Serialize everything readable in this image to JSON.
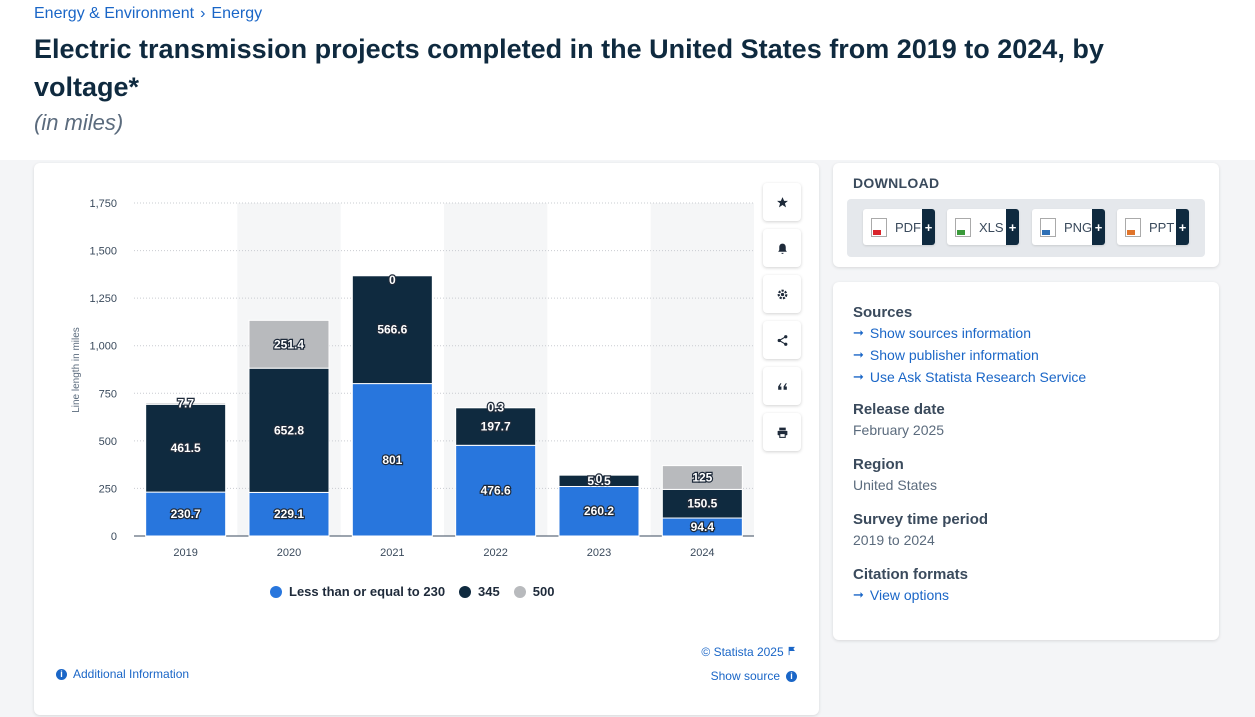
{
  "breadcrumb": [
    "Energy & Environment",
    "Energy"
  ],
  "title": "Electric transmission projects completed in the United States from 2019 to 2024, by voltage*",
  "subtitle": "(in miles)",
  "chart_data": {
    "type": "bar",
    "stacked": true,
    "categories": [
      "2019",
      "2020",
      "2021",
      "2022",
      "2023",
      "2024"
    ],
    "series": [
      {
        "name": "Less than or equal to 230",
        "color": "#2876dd",
        "values": [
          230.7,
          229.1,
          801,
          476.6,
          260.2,
          94.4
        ]
      },
      {
        "name": "345",
        "color": "#0f2a3f",
        "values": [
          461.5,
          652.8,
          566.6,
          197.7,
          59.5,
          150.5
        ]
      },
      {
        "name": "500",
        "color": "#b8babd",
        "values": [
          7.7,
          251.4,
          0,
          0.3,
          0,
          125
        ]
      }
    ],
    "ylabel": "Line length in miles",
    "ylim": [
      0,
      1750
    ],
    "yticks": [
      "0",
      "250",
      "500",
      "750",
      "1,000",
      "1,250",
      "1,500",
      "1,750"
    ],
    "grid": true,
    "legend_position": "bottom"
  },
  "toolbar": [
    "star-icon",
    "bell-icon",
    "gear-icon",
    "share-icon",
    "quote-icon",
    "print-icon"
  ],
  "copyright": "© Statista 2025",
  "additional_info": "Additional Information",
  "show_source": "Show source",
  "download": {
    "title": "DOWNLOAD",
    "buttons": [
      {
        "label": "PDF",
        "color": "#d9242b"
      },
      {
        "label": "XLS",
        "color": "#3a9a3a"
      },
      {
        "label": "PNG",
        "color": "#2e6fb5"
      },
      {
        "label": "PPT",
        "color": "#e0742a"
      }
    ]
  },
  "meta": {
    "sources_title": "Sources",
    "source_links": [
      "Show sources information",
      "Show publisher information",
      "Use Ask Statista Research Service"
    ],
    "release_title": "Release date",
    "release_value": "February 2025",
    "region_title": "Region",
    "region_value": "United States",
    "period_title": "Survey time period",
    "period_value": "2019 to 2024",
    "citation_title": "Citation formats",
    "citation_link": "View options"
  }
}
